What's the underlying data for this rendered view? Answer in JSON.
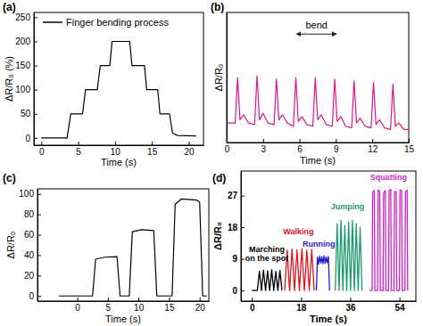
{
  "chart_data": [
    {
      "type": "line",
      "title": "(a)",
      "x_label": "Time (s)",
      "y_label": "ΔR/R₀ (%)",
      "x": [
        0,
        3.5,
        4.0,
        5.6,
        6.0,
        7.6,
        8.0,
        9.3,
        9.6,
        12.0,
        12.3,
        14.0,
        14.3,
        15.8,
        16.1,
        17.4,
        17.8,
        18.5,
        21
      ],
      "series": [
        {
          "name": "Finger bending process",
          "color": "#000000",
          "values": [
            0,
            0,
            50,
            50,
            100,
            100,
            150,
            150,
            200,
            200,
            150,
            150,
            100,
            100,
            50,
            50,
            10,
            5,
            4
          ]
        }
      ],
      "xlim": [
        -1,
        22
      ],
      "ylim": [
        -15,
        260
      ],
      "xticks": [
        0,
        5,
        10,
        15,
        20
      ],
      "yticks": [
        0,
        50,
        100,
        150,
        200,
        250
      ],
      "legend": "upper left"
    },
    {
      "type": "line",
      "title": "(b)",
      "x_label": "Time (s)",
      "y_label": "ΔR/R₀",
      "x": [
        0,
        0.7,
        0.9,
        1.1,
        1.4,
        1.8,
        2.3,
        2.5,
        2.7,
        3.0,
        3.4,
        3.9,
        4.1,
        4.3,
        4.6,
        5.0,
        5.5,
        5.7,
        5.9,
        6.2,
        6.6,
        7.1,
        7.3,
        7.5,
        7.8,
        8.2,
        8.7,
        8.9,
        9.1,
        9.4,
        9.8,
        10.3,
        10.5,
        10.7,
        11.0,
        11.4,
        11.9,
        12.1,
        12.3,
        12.6,
        13.0,
        13.5,
        13.7,
        13.9,
        14.2,
        14.6,
        15
      ],
      "series": [
        {
          "color": "#e0148c",
          "values": [
            0.6,
            0.6,
            2.0,
            0.7,
            0.85,
            0.6,
            0.55,
            2.05,
            0.7,
            0.9,
            0.6,
            0.55,
            1.95,
            0.7,
            0.85,
            0.6,
            0.5,
            2.0,
            0.65,
            0.8,
            0.55,
            0.5,
            2.0,
            0.7,
            0.85,
            0.55,
            0.5,
            1.95,
            0.65,
            0.8,
            0.5,
            0.45,
            1.9,
            0.6,
            0.75,
            0.5,
            0.45,
            1.85,
            0.55,
            0.7,
            0.45,
            0.4,
            1.8,
            0.5,
            0.6,
            0.4,
            0.4
          ]
        }
      ],
      "xlim": [
        0,
        15
      ],
      "ylim": [
        0,
        4
      ],
      "xticks": [
        0,
        3,
        6,
        9,
        12,
        15
      ],
      "tick_labels": "x",
      "annotations": [
        {
          "text": "bend",
          "x": 7.4,
          "y": 3.5
        }
      ]
    },
    {
      "type": "line",
      "title": "(c)",
      "x_label": "Time (s)",
      "y_label": "ΔR/R₀",
      "x": [
        -3,
        2.5,
        3.0,
        4.5,
        6.5,
        7.0,
        8.5,
        9.0,
        10.5,
        12.5,
        13.0,
        15.5,
        16.0,
        17.0,
        19.5,
        20.0,
        20.5,
        21.2
      ],
      "series": [
        {
          "color": "#000000",
          "values": [
            0,
            0,
            36,
            38,
            38.5,
            0,
            0,
            63,
            65,
            64,
            0,
            0,
            90,
            95,
            94,
            92,
            0,
            0
          ]
        }
      ],
      "xlim": [
        -6.5,
        21.5
      ],
      "ylim": [
        -5,
        105
      ],
      "xticks": [
        0,
        5,
        10,
        15,
        20
      ],
      "yticks": [
        0,
        20,
        40,
        60,
        80,
        100
      ]
    },
    {
      "type": "line",
      "title": "(d)",
      "x_label": "Time (s)",
      "y_label": "ΔR/R₀",
      "series": [
        {
          "color": "#000000",
          "x": [
            0,
            2.0,
            2.75,
            3.5,
            4.25,
            5.0,
            5.75,
            6.5,
            7.25,
            8.0,
            8.75,
            9.5,
            10.25,
            11.0
          ],
          "values": [
            0,
            0,
            5.5,
            0,
            5.8,
            0,
            5.6,
            0,
            5.9,
            0,
            5.5,
            0,
            5.7,
            0
          ]
        },
        {
          "color": "#e3121b",
          "x": [
            12.0,
            12.9,
            13.8,
            14.7,
            15.6,
            16.5,
            17.4,
            18.3,
            19.2,
            20.1,
            21.0,
            21.9,
            22.8
          ],
          "values": [
            0,
            11.5,
            0,
            11.8,
            0,
            11.6,
            0,
            11.9,
            0,
            11.5,
            0,
            11.7,
            0
          ]
        },
        {
          "color": "#1c1cd6",
          "x": [
            23.6,
            24.0,
            24.4,
            24.8,
            25.2,
            25.6,
            26.0,
            26.4,
            26.8,
            27.2,
            27.6,
            28.0,
            28.4
          ],
          "values": [
            0,
            9.5,
            7.5,
            9.8,
            7.8,
            9.6,
            7.6,
            9.9,
            7.7,
            9.5,
            7.9,
            9.7,
            0
          ]
        },
        {
          "color": "#1a9a6c",
          "x": [
            30.5,
            31.2,
            31.9,
            32.6,
            33.3,
            34.0,
            34.7,
            35.4,
            36.1,
            36.8,
            37.5,
            38.2,
            38.9,
            39.6,
            40.3
          ],
          "values": [
            0,
            19,
            0,
            20,
            0,
            18.5,
            0,
            19.5,
            0,
            20,
            0,
            19,
            0,
            18,
            0
          ]
        },
        {
          "color": "#d21dd2",
          "x": [
            43,
            44,
            44.2,
            44.8,
            45,
            46,
            46.2,
            46.8,
            47,
            48,
            48.2,
            48.8,
            49,
            50,
            50.2,
            50.8,
            51,
            52,
            52.2,
            52.8,
            53,
            54,
            54.2,
            54.8,
            55,
            56,
            56.2,
            56.8,
            57
          ],
          "values": [
            0,
            0,
            28,
            28.5,
            0,
            0,
            28.6,
            28.2,
            0,
            0,
            27.8,
            28.4,
            0,
            0,
            28.5,
            28.8,
            0,
            0,
            28.2,
            28,
            0,
            0,
            28.7,
            28.3,
            0,
            0,
            28,
            28.6,
            0
          ]
        }
      ],
      "xlim": [
        -4,
        60
      ],
      "ylim": [
        -3,
        34
      ],
      "xticks": [
        0,
        18,
        36,
        54
      ],
      "yticks": [
        0,
        9,
        18,
        27
      ],
      "annotations": [
        {
          "text": "Marching\non the spot",
          "x": 5.5,
          "y": 11,
          "color": "#000000"
        },
        {
          "text": "Walking",
          "x": 17,
          "y": 16,
          "color": "#e3121b"
        },
        {
          "text": "Running",
          "x": 24.5,
          "y": 12.5,
          "color": "#1c1cd6"
        },
        {
          "text": "Jumping",
          "x": 35,
          "y": 23,
          "color": "#1a9a6c"
        },
        {
          "text": "Squatting",
          "x": 50,
          "y": 31.5,
          "color": "#d21dd2"
        }
      ]
    }
  ]
}
